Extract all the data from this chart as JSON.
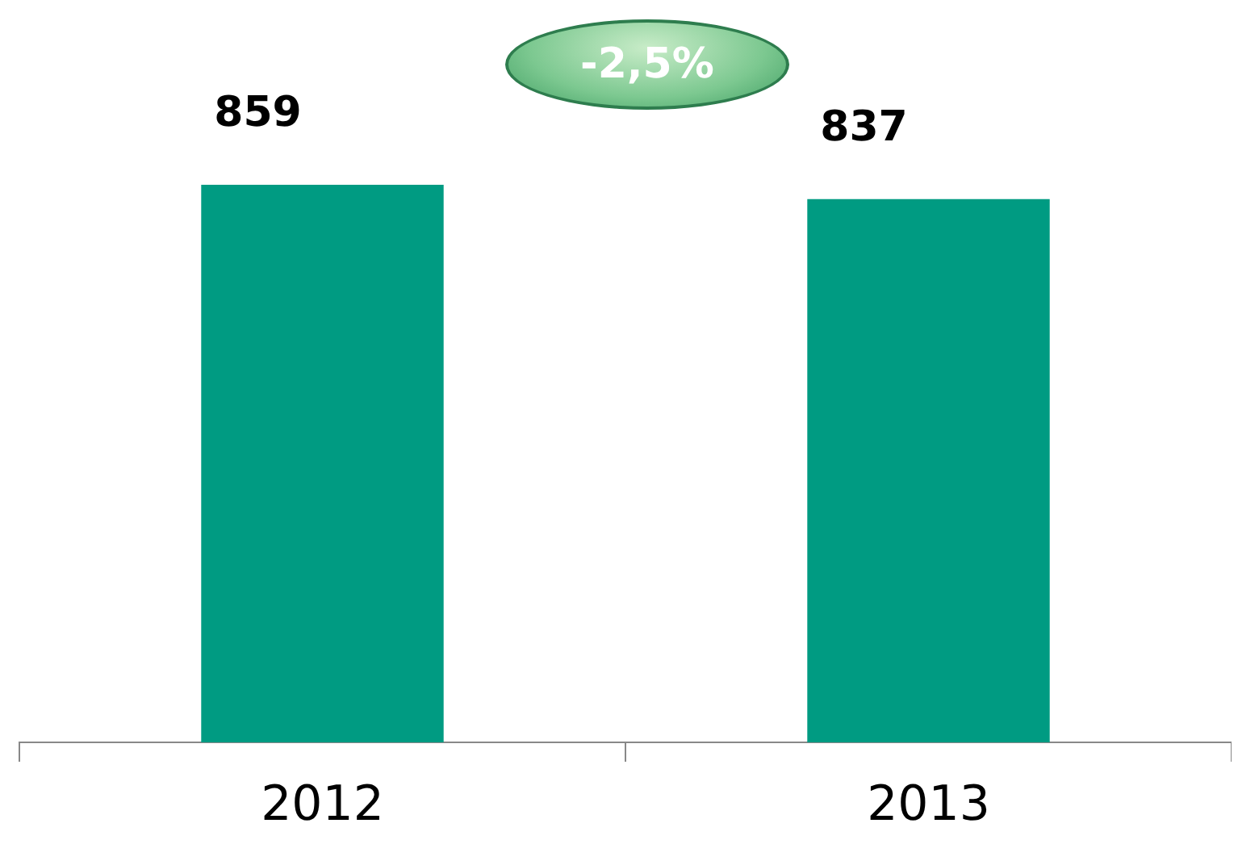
{
  "chart_data": {
    "type": "bar",
    "categories": [
      "2012",
      "2013"
    ],
    "values": [
      859,
      837
    ],
    "color": "#009b82",
    "data_labels": true,
    "annotations": [
      "-2,5%"
    ]
  }
}
